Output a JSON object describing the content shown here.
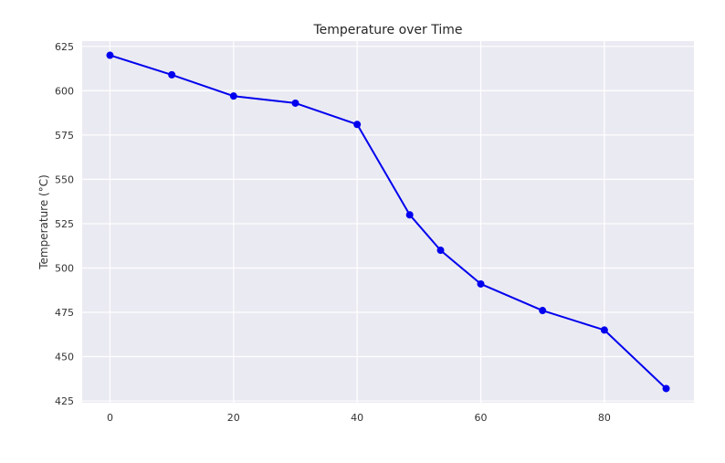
{
  "chart_data": {
    "type": "line",
    "title": "Temperature over Time",
    "xlabel": "",
    "ylabel": "Temperature (°C)",
    "xlim": [
      -4.5,
      94.5
    ],
    "ylim": [
      424,
      628
    ],
    "x_ticks": [
      0,
      20,
      40,
      60,
      80
    ],
    "y_ticks": [
      425,
      450,
      475,
      500,
      525,
      550,
      575,
      600,
      625
    ],
    "grid": true,
    "background": "#eaeaf2",
    "grid_color": "#ffffff",
    "line_color": "#0000ee",
    "series": [
      {
        "x": [
          0,
          10,
          20,
          30,
          40,
          48.5,
          53.5,
          60,
          70,
          80,
          90
        ],
        "y": [
          620,
          609,
          597,
          593,
          581,
          530,
          510,
          491,
          476,
          465,
          432
        ]
      }
    ]
  }
}
